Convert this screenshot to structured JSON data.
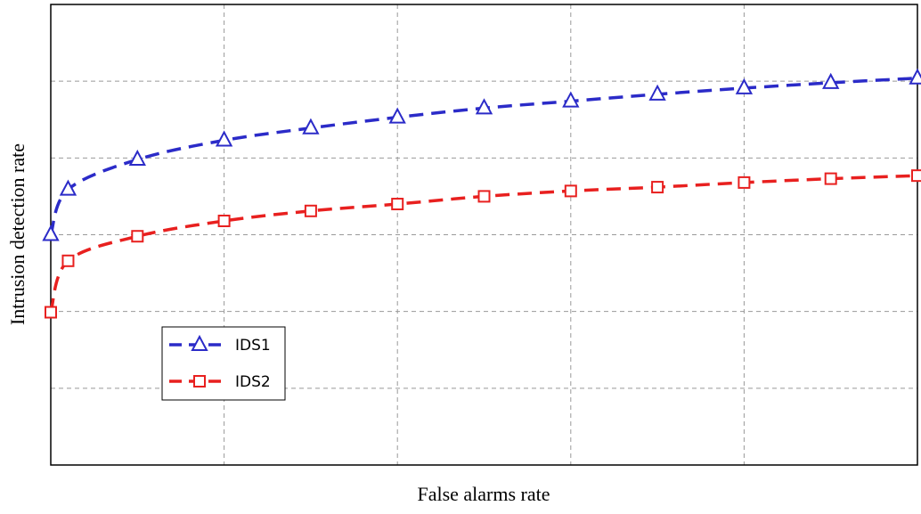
{
  "chart_data": {
    "type": "line",
    "xlabel": "False alarms rate",
    "ylabel": "Intrusion detection rate",
    "x": [
      0,
      0.1,
      0.5,
      1.0,
      1.5,
      2.0,
      2.5,
      3.0,
      3.5,
      4.0,
      4.5,
      5.0
    ],
    "series": [
      {
        "name": "IDS1",
        "color": "#2b2bc8",
        "marker": "triangle",
        "values": [
          3.0,
          3.59,
          3.98,
          4.23,
          4.39,
          4.53,
          4.65,
          4.74,
          4.83,
          4.91,
          4.98,
          5.04
        ]
      },
      {
        "name": "IDS2",
        "color": "#e8201f",
        "marker": "square",
        "values": [
          1.99,
          2.66,
          2.98,
          3.18,
          3.31,
          3.4,
          3.5,
          3.57,
          3.62,
          3.68,
          3.73,
          3.77
        ]
      }
    ],
    "xlim": [
      0,
      5
    ],
    "ylim": [
      0,
      6
    ],
    "xticks": [
      1,
      2,
      3,
      4
    ],
    "yticks": [
      1,
      2,
      3,
      4,
      5
    ],
    "grid": true,
    "legend": "lower left"
  }
}
